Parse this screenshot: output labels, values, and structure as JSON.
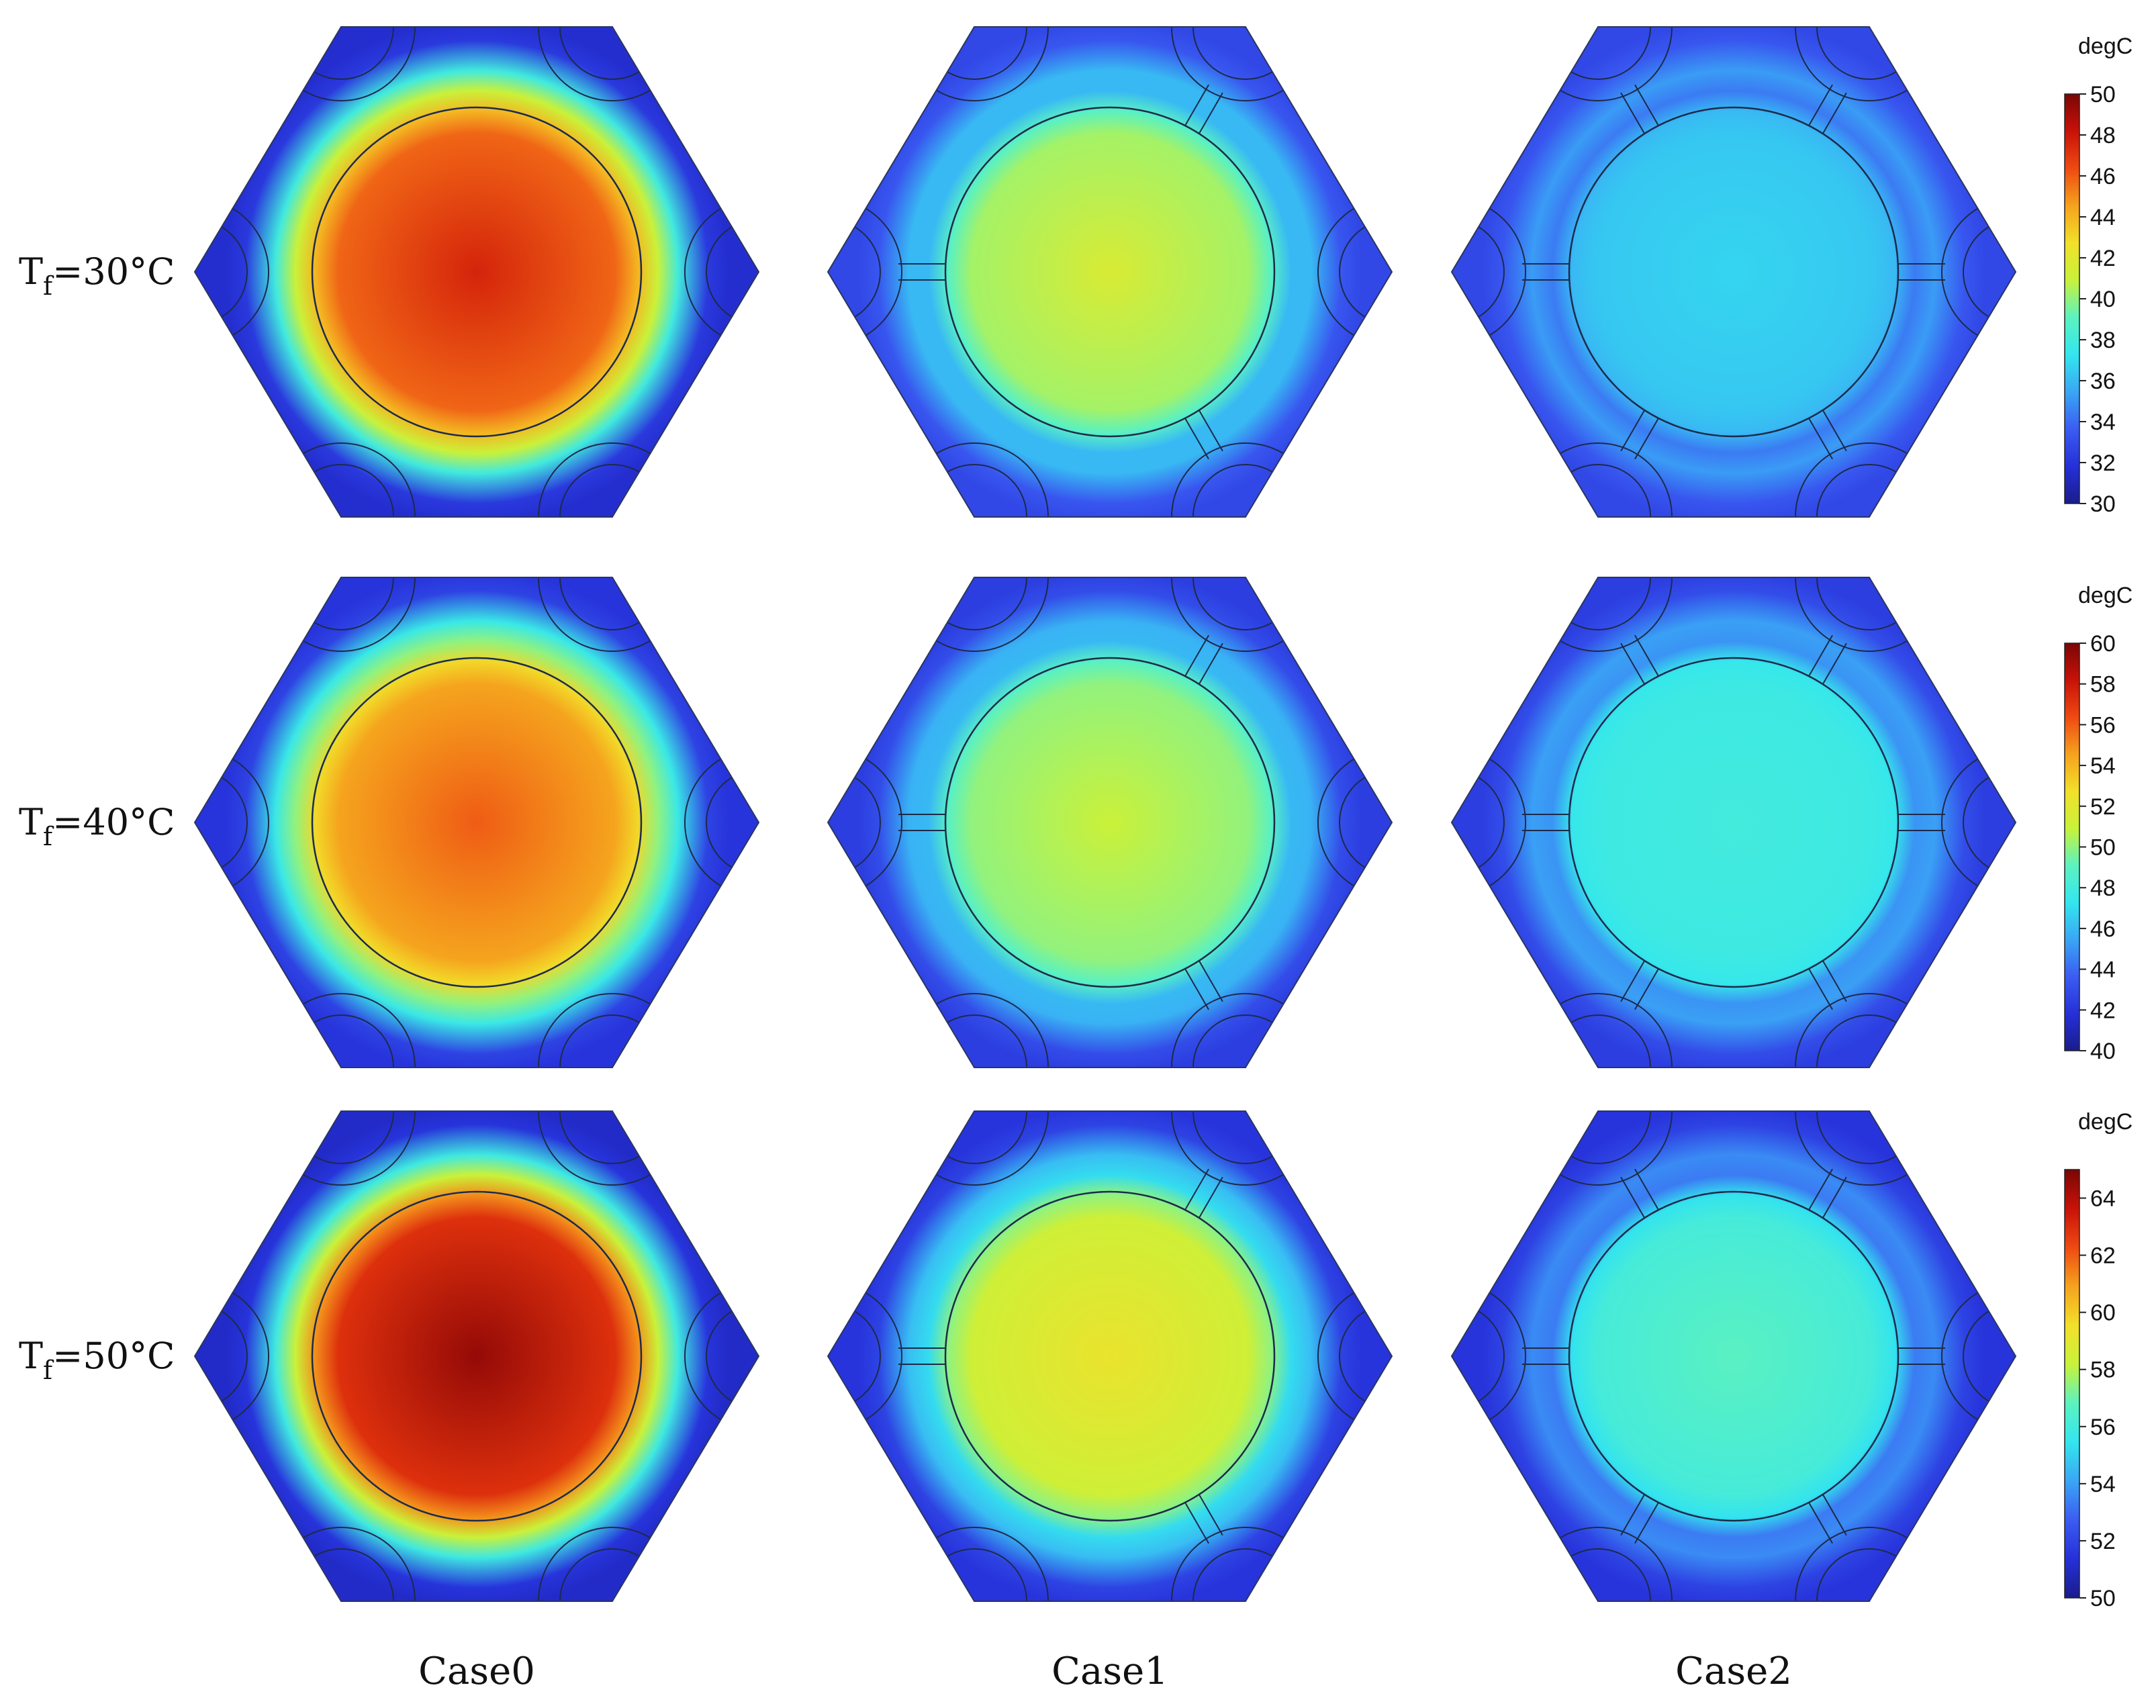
{
  "rows": [
    {
      "label_main": "T",
      "label_sub": "f",
      "label_rest": "=30°C"
    },
    {
      "label_main": "T",
      "label_sub": "f",
      "label_rest": "=40°C"
    },
    {
      "label_main": "T",
      "label_sub": "f",
      "label_rest": "=50°C"
    }
  ],
  "columns": [
    "Case0",
    "Case1",
    "Case2"
  ],
  "colorbars": [
    {
      "unit": "degC",
      "min": 30,
      "max": 50,
      "ticks": [
        "50",
        "48",
        "46",
        "44",
        "42",
        "40",
        "38",
        "36",
        "34",
        "32",
        "30"
      ]
    },
    {
      "unit": "degC",
      "min": 40,
      "max": 60,
      "ticks": [
        "60",
        "58",
        "56",
        "54",
        "52",
        "50",
        "48",
        "46",
        "44",
        "42",
        "40"
      ]
    },
    {
      "unit": "degC",
      "min": 50,
      "max": 65,
      "ticks": [
        "64",
        "62",
        "60",
        "58",
        "56",
        "54",
        "52",
        "50"
      ]
    }
  ],
  "fields": [
    [
      {
        "bg": 0.08,
        "center": 0.88,
        "rim": 0.7,
        "halo": 0.55,
        "haloColor": "#30e8f0"
      },
      {
        "bg": 0.14,
        "center": 0.58,
        "rim": 0.45,
        "halo": 0.3,
        "haloColor": "#3fd0f0"
      },
      {
        "bg": 0.14,
        "center": 0.34,
        "rim": 0.3,
        "halo": 0.22,
        "haloColor": "#3fd0f0"
      }
    ],
    [
      {
        "bg": 0.1,
        "center": 0.8,
        "rim": 0.65,
        "halo": 0.5,
        "haloColor": "#30e8f0"
      },
      {
        "bg": 0.12,
        "center": 0.55,
        "rim": 0.45,
        "halo": 0.3,
        "haloColor": "#3fd0f0"
      },
      {
        "bg": 0.12,
        "center": 0.4,
        "rim": 0.37,
        "halo": 0.25,
        "haloColor": "#3fd0f0"
      }
    ],
    [
      {
        "bg": 0.07,
        "center": 0.97,
        "rim": 0.75,
        "halo": 0.55,
        "haloColor": "#30e8f0"
      },
      {
        "bg": 0.1,
        "center": 0.62,
        "rim": 0.5,
        "halo": 0.35,
        "haloColor": "#3fd0f0"
      },
      {
        "bg": 0.1,
        "center": 0.45,
        "rim": 0.36,
        "halo": 0.22,
        "haloColor": "#3fd0f0"
      }
    ]
  ],
  "colormap": [
    "#1a1c8c",
    "#2530d8",
    "#3b5cf2",
    "#3aa6f5",
    "#33e6ee",
    "#5cf2c0",
    "#c8f23a",
    "#f2e02a",
    "#f5a21e",
    "#ee4a12",
    "#c81208",
    "#7a0606"
  ]
}
